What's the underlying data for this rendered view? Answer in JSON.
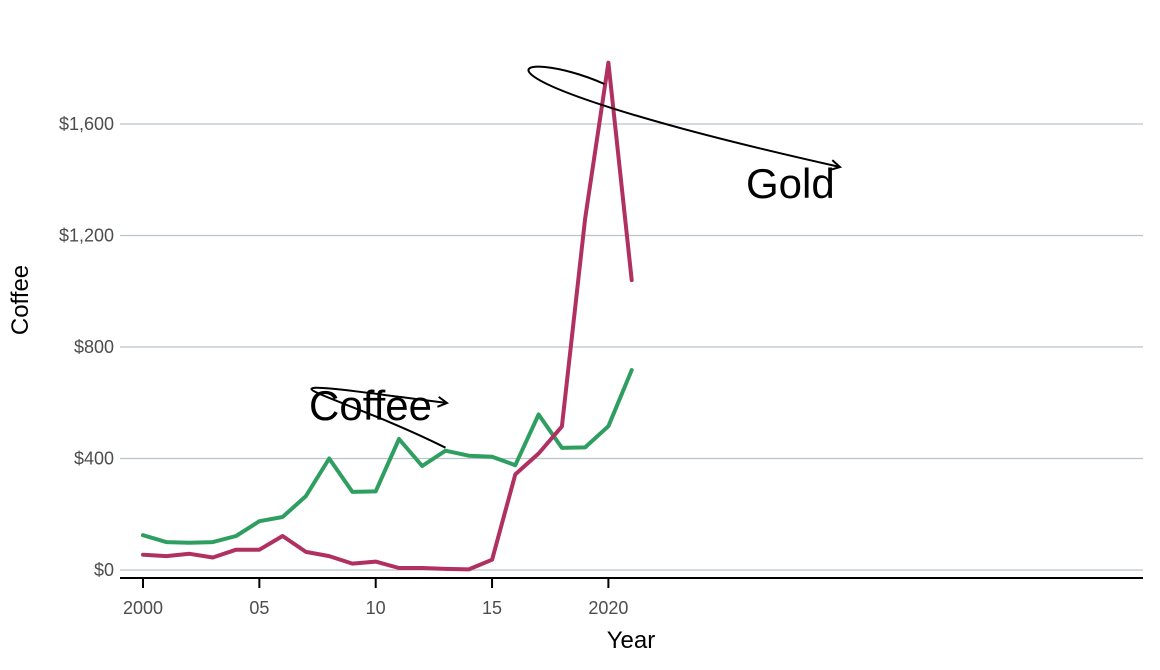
{
  "chart_data": {
    "type": "line",
    "title": "",
    "xlabel": "Year",
    "ylabel": "Coffee",
    "x": [
      2000,
      2001,
      2002,
      2003,
      2004,
      2005,
      2006,
      2007,
      2008,
      2009,
      2010,
      2011,
      2012,
      2013,
      2014,
      2015,
      2016,
      2017,
      2018,
      2019,
      2020,
      2021
    ],
    "x_ticks": [
      2000,
      2005,
      2010,
      2015,
      2020
    ],
    "x_tick_labels": [
      "2000",
      "05",
      "10",
      "15",
      "2020"
    ],
    "y_ticks": [
      0,
      400,
      800,
      1200,
      1600
    ],
    "y_tick_labels": [
      "$0",
      "$400",
      "$800",
      "$1,200",
      "$1,600"
    ],
    "xlim": [
      1999.5,
      2021.5
    ],
    "ylim": [
      -30,
      1800
    ],
    "grid": "horizontal",
    "legend": "none",
    "series": [
      {
        "name": "Coffee",
        "color": "#2e9e61",
        "values": [
          125,
          100,
          98,
          100,
          122,
          175,
          190,
          265,
          400,
          280,
          282,
          470,
          373,
          428,
          410,
          406,
          376,
          558,
          438,
          440,
          516,
          717
        ]
      },
      {
        "name": "Gold",
        "color": "#b03060",
        "values": [
          55,
          50,
          58,
          45,
          73,
          73,
          122,
          65,
          50,
          23,
          30,
          7,
          7,
          4,
          2,
          37,
          343,
          418,
          515,
          1260,
          1820,
          1040
        ]
      }
    ],
    "annotations": [
      {
        "text": "Coffee",
        "target_x": 2013,
        "target_y": 428
      },
      {
        "text": "Gold",
        "target_x": 2020,
        "target_y": 1765
      }
    ]
  }
}
